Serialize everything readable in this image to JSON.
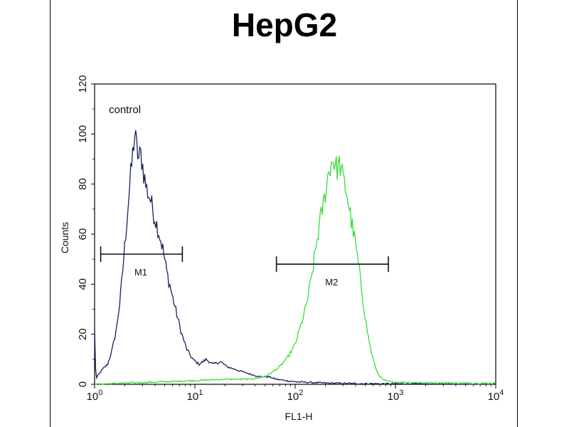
{
  "chart_data": {
    "type": "line",
    "title": "HepG2",
    "xlabel": "FL1-H",
    "ylabel": "Counts",
    "x_scale": "log",
    "xlim": [
      1,
      10000
    ],
    "ylim": [
      0,
      120
    ],
    "x_ticks": [
      {
        "value": 1,
        "base": "10",
        "exp": "0"
      },
      {
        "value": 10,
        "base": "10",
        "exp": "1"
      },
      {
        "value": 100,
        "base": "10",
        "exp": "2"
      },
      {
        "value": 1000,
        "base": "10",
        "exp": "3"
      },
      {
        "value": 10000,
        "base": "10",
        "exp": "4"
      }
    ],
    "y_ticks": [
      "0",
      "20",
      "40",
      "60",
      "80",
      "100",
      "120"
    ],
    "annotation": "control",
    "grid": false,
    "series": [
      {
        "color": "#1a1f5e",
        "points": [
          [
            1.0,
            22
          ],
          [
            1.03,
            2
          ],
          [
            1.1,
            4
          ],
          [
            1.2,
            6
          ],
          [
            1.35,
            8
          ],
          [
            1.5,
            14
          ],
          [
            1.65,
            22
          ],
          [
            1.8,
            34
          ],
          [
            1.95,
            50
          ],
          [
            2.1,
            66
          ],
          [
            2.25,
            80
          ],
          [
            2.4,
            92
          ],
          [
            2.5,
            100
          ],
          [
            2.6,
            96
          ],
          [
            2.75,
            90
          ],
          [
            2.9,
            92
          ],
          [
            3.1,
            84
          ],
          [
            3.3,
            78
          ],
          [
            3.6,
            74
          ],
          [
            3.9,
            68
          ],
          [
            4.3,
            62
          ],
          [
            4.8,
            54
          ],
          [
            5.3,
            44
          ],
          [
            5.9,
            36
          ],
          [
            6.6,
            28
          ],
          [
            7.4,
            20
          ],
          [
            8.3,
            14
          ],
          [
            9.5,
            10
          ],
          [
            11,
            8
          ],
          [
            13,
            10
          ],
          [
            15,
            8
          ],
          [
            18,
            9
          ],
          [
            21,
            7
          ],
          [
            25,
            6
          ],
          [
            30,
            5
          ],
          [
            36,
            4
          ],
          [
            45,
            3
          ],
          [
            55,
            3
          ],
          [
            65,
            2
          ],
          [
            80,
            1.5
          ],
          [
            100,
            1
          ],
          [
            130,
            0.8
          ],
          [
            200,
            0.5
          ],
          [
            400,
            0.3
          ],
          [
            800,
            0.2
          ],
          [
            2000,
            0.1
          ],
          [
            10000,
            0
          ]
        ]
      },
      {
        "color": "#3adb3a",
        "points": [
          [
            1.0,
            0
          ],
          [
            2,
            0.5
          ],
          [
            5,
            1
          ],
          [
            10,
            1.5
          ],
          [
            20,
            2
          ],
          [
            35,
            2
          ],
          [
            50,
            3
          ],
          [
            60,
            5
          ],
          [
            70,
            7
          ],
          [
            85,
            11
          ],
          [
            100,
            16
          ],
          [
            115,
            24
          ],
          [
            130,
            32
          ],
          [
            145,
            42
          ],
          [
            160,
            54
          ],
          [
            175,
            64
          ],
          [
            195,
            74
          ],
          [
            210,
            82
          ],
          [
            225,
            88
          ],
          [
            240,
            90
          ],
          [
            260,
            86
          ],
          [
            280,
            88
          ],
          [
            300,
            82
          ],
          [
            330,
            76
          ],
          [
            360,
            66
          ],
          [
            400,
            56
          ],
          [
            440,
            44
          ],
          [
            480,
            32
          ],
          [
            530,
            20
          ],
          [
            580,
            12
          ],
          [
            640,
            6
          ],
          [
            700,
            3
          ],
          [
            780,
            1.5
          ],
          [
            900,
            1
          ],
          [
            1200,
            0.8
          ],
          [
            2000,
            0.6
          ],
          [
            4000,
            0.5
          ],
          [
            10000,
            0.4
          ]
        ]
      }
    ],
    "markers": [
      {
        "label": "M1",
        "x_start": 1.15,
        "x_end": 7.5,
        "y": 52
      },
      {
        "label": "M2",
        "x_start": 65,
        "x_end": 850,
        "y": 48
      }
    ]
  }
}
